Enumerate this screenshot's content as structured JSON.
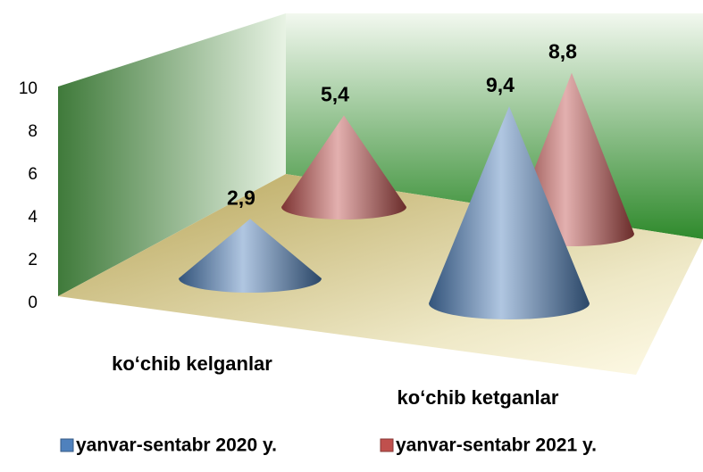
{
  "chart_data": {
    "type": "cone",
    "categories": [
      "ko‘chib kelganlar",
      "ko‘chib ketganlar"
    ],
    "series": [
      {
        "name": "yanvar-sentabr 2020 y.",
        "color": "#4f81bd",
        "values": [
          2.9,
          9.4
        ],
        "value_labels": [
          "2,9",
          "9,4"
        ]
      },
      {
        "name": "yanvar-sentabr 2021 y.",
        "color": "#c0504d",
        "values": [
          5.4,
          8.8
        ],
        "value_labels": [
          "5,4",
          "8,8"
        ]
      }
    ],
    "ylim": [
      0,
      10
    ],
    "yticks": [
      0,
      2,
      4,
      6,
      8,
      10
    ]
  }
}
